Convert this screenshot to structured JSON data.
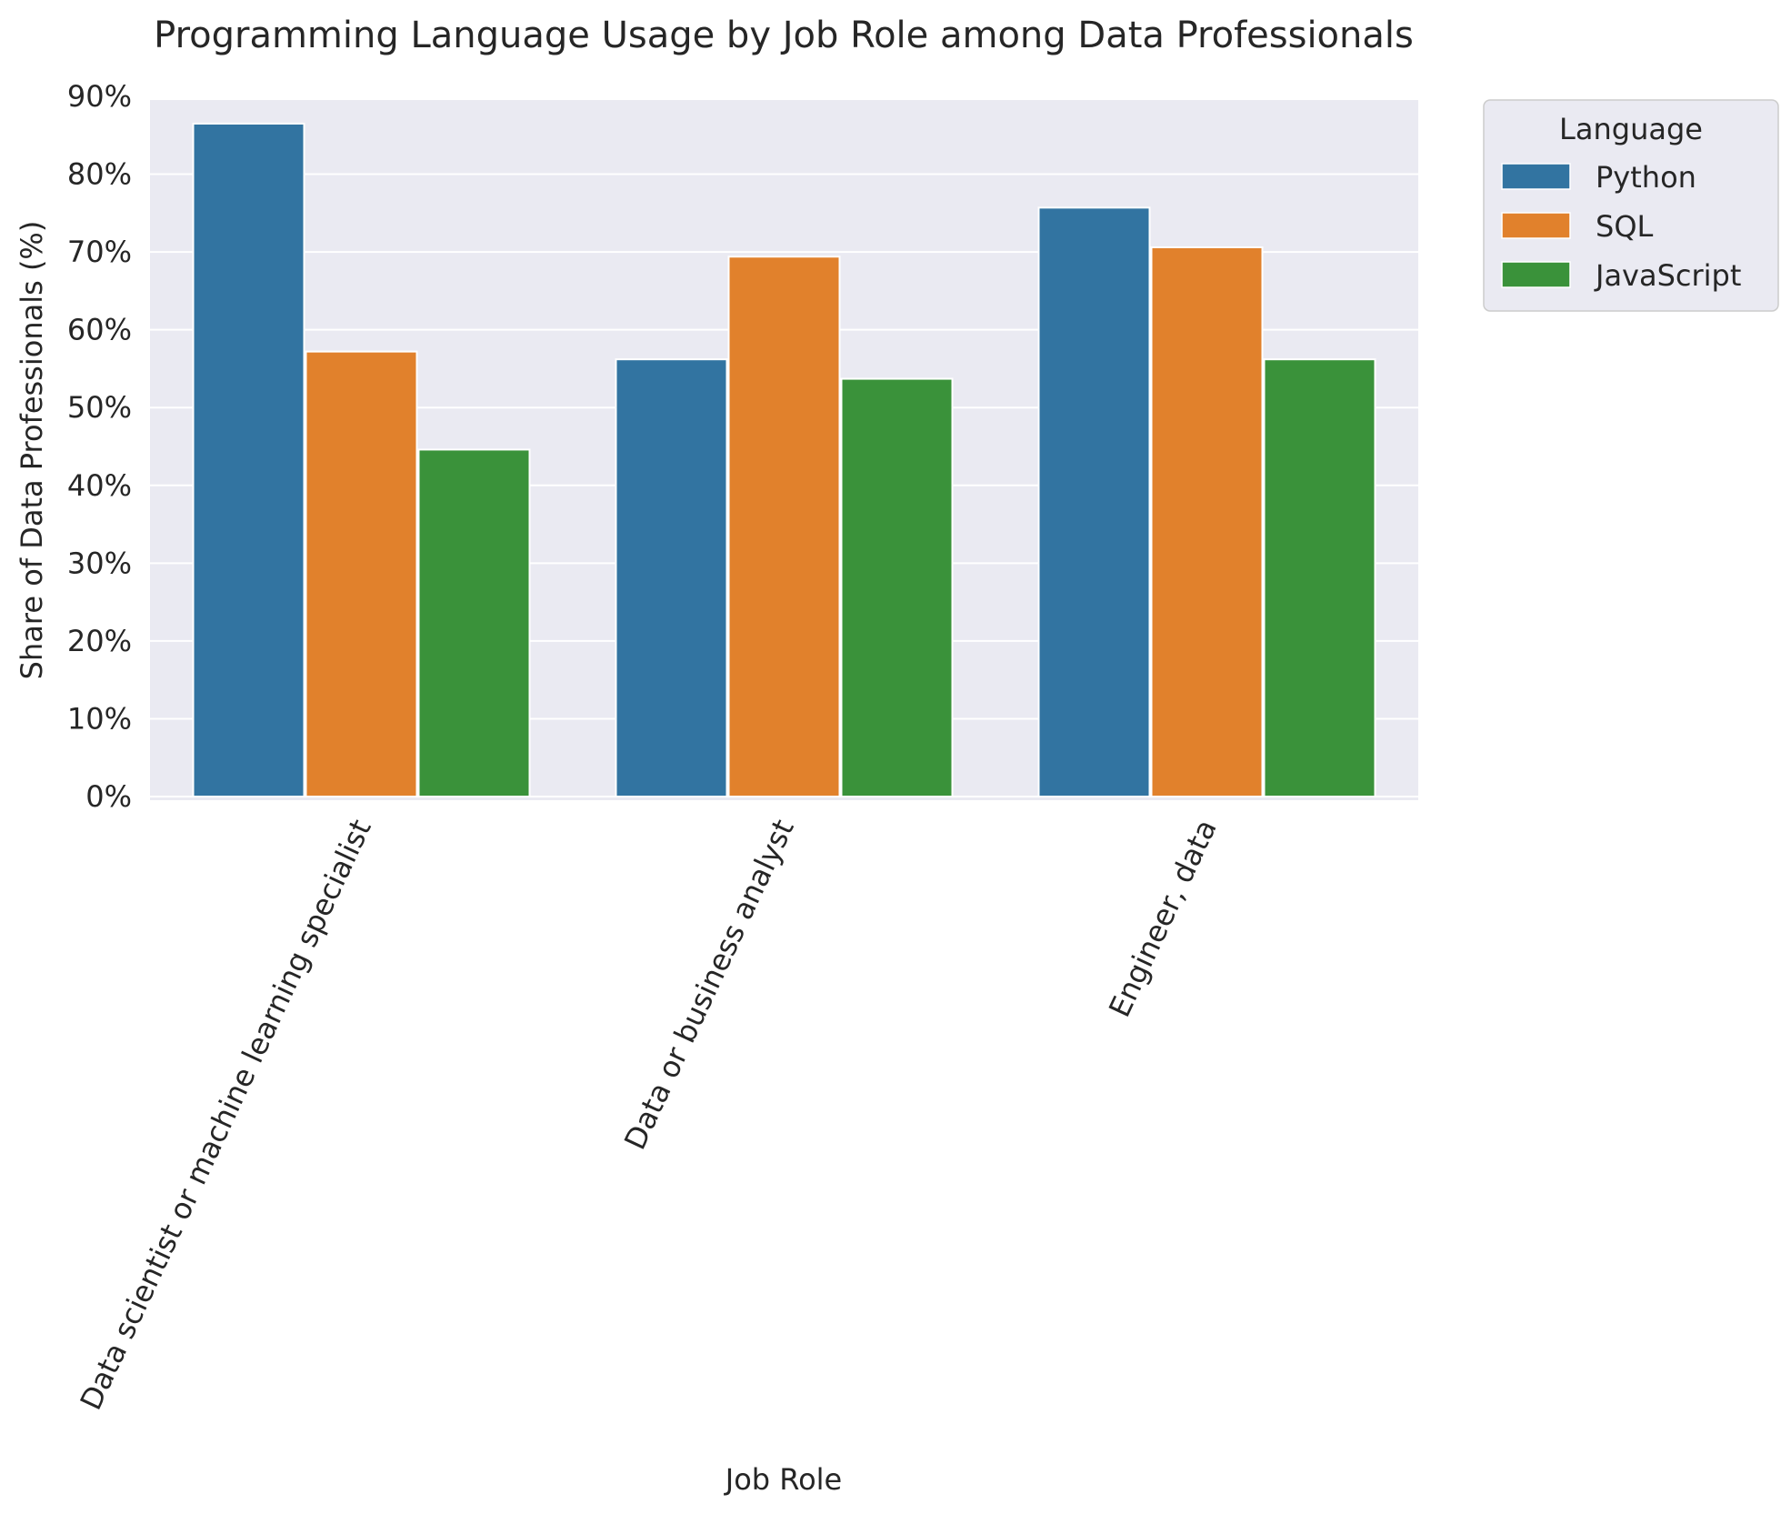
{
  "chart_data": {
    "type": "bar",
    "title": "Programming Language Usage by Job Role among Data Professionals",
    "xlabel": "Job Role",
    "ylabel": "Share of Data Professionals (%)",
    "ylim": [
      0,
      0.9
    ],
    "yticks": [
      0,
      0.1,
      0.2,
      0.3,
      0.4,
      0.5,
      0.6,
      0.7,
      0.8,
      0.9
    ],
    "ytick_labels": [
      "0%",
      "10%",
      "20%",
      "30%",
      "40%",
      "50%",
      "60%",
      "70%",
      "80%",
      "90%"
    ],
    "grid": true,
    "legend": {
      "title": "Language",
      "position": "outside-top-right"
    },
    "categories": [
      "Data scientist or machine learning specialist",
      "Data or business analyst",
      "Engineer, data"
    ],
    "series": [
      {
        "name": "Python",
        "color": "#3274a1",
        "values": [
          0.865,
          0.562,
          0.757
        ]
      },
      {
        "name": "SQL",
        "color": "#e1812c",
        "values": [
          0.572,
          0.694,
          0.706
        ]
      },
      {
        "name": "JavaScript",
        "color": "#3a923a",
        "values": [
          0.446,
          0.537,
          0.562
        ]
      }
    ]
  }
}
